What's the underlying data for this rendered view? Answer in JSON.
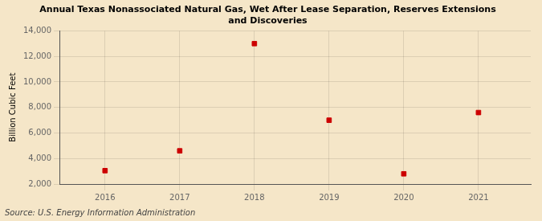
{
  "chart_data": {
    "type": "scatter",
    "title": "Annual Texas Nonassociated Natural Gas, Wet After Lease Separation, Reserves Extensions\nand Discoveries",
    "y_label": "Billion Cubic Feet",
    "annotation": "Source: U.S. Energy Information Administration",
    "x": [
      2016,
      2017,
      2018,
      2019,
      2020,
      2021
    ],
    "values": [
      3050,
      4600,
      13000,
      7000,
      2800,
      7600
    ],
    "xlim": [
      2015.4,
      2021.7
    ],
    "xticks": [
      2016,
      2017,
      2018,
      2019,
      2020,
      2021
    ],
    "ylim": [
      2000,
      14000
    ],
    "yticks": [
      {
        "value": 2000,
        "label": "2,000"
      },
      {
        "value": 4000,
        "label": "4,000"
      },
      {
        "value": 6000,
        "label": "6,000"
      },
      {
        "value": 8000,
        "label": "8,000"
      },
      {
        "value": 10000,
        "label": "10,000"
      },
      {
        "value": 12000,
        "label": "12,000"
      },
      {
        "value": 14000,
        "label": "14,000"
      }
    ],
    "color": "#cc0000",
    "marker": "square",
    "grid": true
  }
}
